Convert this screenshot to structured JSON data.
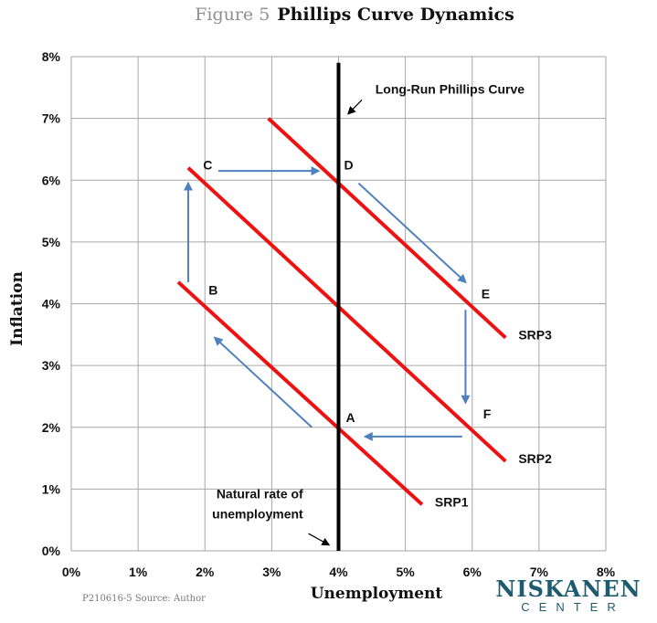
{
  "figure_number": "Figure 5",
  "footer_source": "P210616-5 Source: Author",
  "logo": {
    "name": "NISKANEN",
    "sub": "CENTER"
  },
  "colors": {
    "srp": "#ee1111",
    "lrpc": "#000000",
    "arrow": "#4f81bd",
    "grid": "#a6a6a6"
  },
  "chart_data": {
    "type": "line",
    "title": "Phillips Curve Dynamics",
    "xlabel": "Unemployment",
    "ylabel": "Inflation",
    "xlim": [
      0,
      8
    ],
    "ylim": [
      0,
      8
    ],
    "x_ticks": [
      "0%",
      "1%",
      "2%",
      "3%",
      "4%",
      "5%",
      "6%",
      "7%",
      "8%"
    ],
    "y_ticks": [
      "0%",
      "1%",
      "2%",
      "3%",
      "4%",
      "5%",
      "6%",
      "7%",
      "8%"
    ],
    "grid": true,
    "series": [
      {
        "name": "SRP1",
        "x": [
          1.6,
          5.25
        ],
        "y": [
          4.35,
          0.75
        ]
      },
      {
        "name": "SRP2",
        "x": [
          1.75,
          6.5
        ],
        "y": [
          6.2,
          1.45
        ]
      },
      {
        "name": "SRP3",
        "x": [
          2.95,
          6.5
        ],
        "y": [
          7.0,
          3.45
        ]
      }
    ],
    "vertical_line": {
      "label": "Long-Run Phillips Curve",
      "x": 4.0,
      "y_range": [
        0,
        7.9
      ]
    },
    "points": [
      {
        "label": "A",
        "x": 4.0,
        "y": 2.0
      },
      {
        "label": "B",
        "x": 2.0,
        "y": 4.0
      },
      {
        "label": "C",
        "x": 2.0,
        "y": 6.0
      },
      {
        "label": "D",
        "x": 4.0,
        "y": 6.0
      },
      {
        "label": "E",
        "x": 6.0,
        "y": 4.0
      },
      {
        "label": "F",
        "x": 6.0,
        "y": 2.0
      }
    ],
    "arrows": [
      {
        "from": [
          3.6,
          2.0
        ],
        "to": [
          2.15,
          3.45
        ]
      },
      {
        "from": [
          1.75,
          4.35
        ],
        "to": [
          1.75,
          5.95
        ]
      },
      {
        "from": [
          2.2,
          6.15
        ],
        "to": [
          3.7,
          6.15
        ]
      },
      {
        "from": [
          4.3,
          5.95
        ],
        "to": [
          5.9,
          4.35
        ]
      },
      {
        "from": [
          5.9,
          3.9
        ],
        "to": [
          5.9,
          2.4
        ]
      },
      {
        "from": [
          5.85,
          1.85
        ],
        "to": [
          4.4,
          1.85
        ]
      }
    ],
    "annotations": [
      {
        "text": "Natural rate of unemployment",
        "lines": [
          "Natural rate of",
          "unemployment"
        ],
        "arrow_from": [
          3.55,
          0.28
        ],
        "arrow_to": [
          3.85,
          0.1
        ]
      },
      {
        "text": "Long-Run Phillips Curve",
        "arrow_from": [
          4.35,
          7.3
        ],
        "arrow_to": [
          4.15,
          7.08
        ]
      }
    ]
  }
}
